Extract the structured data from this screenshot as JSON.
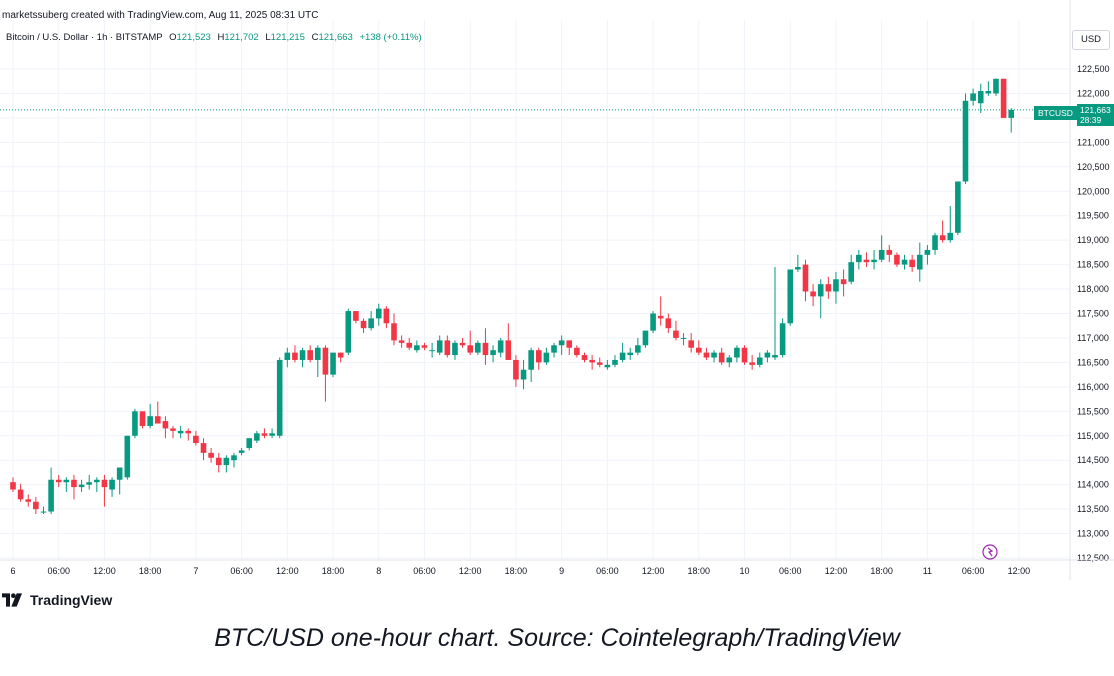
{
  "header": {
    "credit": "marketssuberg created with TradingView.com, Aug 11, 2025 08:31 UTC"
  },
  "legend": {
    "symbol": "Bitcoin / U.S. Dollar · 1h · BITSTAMP",
    "open_label": "O",
    "open": "121,523",
    "high_label": "H",
    "high": "121,702",
    "low_label": "L",
    "low": "121,215",
    "close_label": "C",
    "close": "121,663",
    "change": "+138 (+0.11%)"
  },
  "currency_button": "USD",
  "price_tag": {
    "symbol": "BTCUSD",
    "price": "121,663",
    "countdown": "28:39"
  },
  "logo": {
    "text": "TradingView"
  },
  "caption": "BTC/USD one-hour chart. Source: Cointelegraph/TradingView",
  "colors": {
    "up": "#089981",
    "down": "#f23645",
    "grid": "#f0f3fa",
    "last_price_line": "#089981"
  },
  "chart_data": {
    "type": "candlestick",
    "ylim": [
      112500,
      122800
    ],
    "yticks": [
      "112,500",
      "113,000",
      "113,500",
      "114,000",
      "114,500",
      "115,000",
      "115,500",
      "116,000",
      "116,500",
      "117,000",
      "117,500",
      "118,000",
      "118,500",
      "119,000",
      "119,500",
      "120,000",
      "120,500",
      "121,000",
      "121,500",
      "122,000",
      "122,500"
    ],
    "x_ticks": [
      {
        "label": "6",
        "index": 0
      },
      {
        "label": "06:00",
        "index": 6
      },
      {
        "label": "12:00",
        "index": 12
      },
      {
        "label": "18:00",
        "index": 18
      },
      {
        "label": "7",
        "index": 24
      },
      {
        "label": "06:00",
        "index": 30
      },
      {
        "label": "12:00",
        "index": 36
      },
      {
        "label": "18:00",
        "index": 42
      },
      {
        "label": "8",
        "index": 48
      },
      {
        "label": "06:00",
        "index": 54
      },
      {
        "label": "12:00",
        "index": 60
      },
      {
        "label": "18:00",
        "index": 66
      },
      {
        "label": "9",
        "index": 72
      },
      {
        "label": "06:00",
        "index": 78
      },
      {
        "label": "12:00",
        "index": 84
      },
      {
        "label": "18:00",
        "index": 90
      },
      {
        "label": "10",
        "index": 96
      },
      {
        "label": "06:00",
        "index": 102
      },
      {
        "label": "12:00",
        "index": 108
      },
      {
        "label": "18:00",
        "index": 114
      },
      {
        "label": "11",
        "index": 120
      },
      {
        "label": "06:00",
        "index": 126
      },
      {
        "label": "12:00",
        "index": 132
      }
    ],
    "last_price": 121663,
    "candles": [
      [
        114050,
        114150,
        113850,
        113900
      ],
      [
        113900,
        114020,
        113650,
        113700
      ],
      [
        113700,
        113800,
        113550,
        113650
      ],
      [
        113650,
        113750,
        113400,
        113500
      ],
      [
        113450,
        113550,
        113400,
        113450
      ],
      [
        113450,
        114350,
        113400,
        114100
      ],
      [
        114100,
        114200,
        113950,
        114050
      ],
      [
        114050,
        114150,
        113850,
        114100
      ],
      [
        114100,
        114200,
        113700,
        113950
      ],
      [
        113950,
        114100,
        113850,
        114000
      ],
      [
        114000,
        114200,
        113900,
        114050
      ],
      [
        114050,
        114150,
        113850,
        114100
      ],
      [
        114100,
        114200,
        113550,
        113950
      ],
      [
        113900,
        114150,
        113750,
        114100
      ],
      [
        114100,
        114350,
        113800,
        114350
      ],
      [
        114150,
        115000,
        114100,
        115000
      ],
      [
        115000,
        115550,
        114950,
        115500
      ],
      [
        115500,
        115500,
        115150,
        115200
      ],
      [
        115200,
        115650,
        115150,
        115400
      ],
      [
        115400,
        115700,
        115250,
        115250
      ],
      [
        115300,
        115400,
        114950,
        115150
      ],
      [
        115150,
        115200,
        114950,
        115100
      ],
      [
        115050,
        115200,
        114950,
        115100
      ],
      [
        115100,
        115150,
        114900,
        115050
      ],
      [
        115000,
        115100,
        114800,
        114850
      ],
      [
        114850,
        114950,
        114500,
        114650
      ],
      [
        114650,
        114750,
        114450,
        114550
      ],
      [
        114550,
        114650,
        114250,
        114400
      ],
      [
        114400,
        114600,
        114250,
        114550
      ],
      [
        114500,
        114650,
        114350,
        114600
      ],
      [
        114650,
        114750,
        114600,
        114700
      ],
      [
        114750,
        114950,
        114700,
        114950
      ],
      [
        114900,
        115100,
        114850,
        115050
      ],
      [
        115050,
        115150,
        114950,
        115000
      ],
      [
        115000,
        115150,
        114950,
        115050
      ],
      [
        115000,
        116600,
        114950,
        116550
      ],
      [
        116550,
        116800,
        116400,
        116700
      ],
      [
        116700,
        116850,
        116500,
        116550
      ],
      [
        116550,
        116800,
        116400,
        116750
      ],
      [
        116750,
        116850,
        116500,
        116550
      ],
      [
        116550,
        116850,
        116200,
        116800
      ],
      [
        116800,
        116850,
        115700,
        116250
      ],
      [
        116250,
        116700,
        116200,
        116700
      ],
      [
        116700,
        116700,
        116500,
        116600
      ],
      [
        116700,
        117600,
        116650,
        117550
      ],
      [
        117550,
        117550,
        117300,
        117350
      ],
      [
        117350,
        117400,
        117100,
        117200
      ],
      [
        117200,
        117550,
        117150,
        117400
      ],
      [
        117400,
        117700,
        117250,
        117600
      ],
      [
        117600,
        117650,
        117200,
        117300
      ],
      [
        117300,
        117500,
        116850,
        116950
      ],
      [
        116950,
        117050,
        116800,
        116900
      ],
      [
        116900,
        117000,
        116750,
        116800
      ],
      [
        116750,
        116950,
        116700,
        116850
      ],
      [
        116850,
        116900,
        116750,
        116800
      ],
      [
        116750,
        116900,
        116600,
        116750
      ],
      [
        116700,
        117050,
        116650,
        116950
      ],
      [
        116950,
        117050,
        116600,
        116650
      ],
      [
        116650,
        116950,
        116550,
        116900
      ],
      [
        116900,
        117000,
        116800,
        116850
      ],
      [
        116850,
        117150,
        116650,
        116700
      ],
      [
        116700,
        116950,
        116650,
        116900
      ],
      [
        116900,
        117200,
        116450,
        116650
      ],
      [
        116650,
        116850,
        116500,
        116750
      ],
      [
        116700,
        117000,
        116600,
        116950
      ],
      [
        116950,
        117300,
        116550,
        116550
      ],
      [
        116550,
        116650,
        116000,
        116150
      ],
      [
        116150,
        116550,
        115950,
        116350
      ],
      [
        116350,
        116800,
        116100,
        116750
      ],
      [
        116750,
        116800,
        116350,
        116500
      ],
      [
        116500,
        116800,
        116450,
        116700
      ],
      [
        116700,
        116900,
        116600,
        116850
      ],
      [
        116850,
        117050,
        116650,
        116950
      ],
      [
        116950,
        116950,
        116650,
        116800
      ],
      [
        116800,
        116850,
        116600,
        116650
      ],
      [
        116650,
        116700,
        116500,
        116550
      ],
      [
        116550,
        116650,
        116350,
        116500
      ],
      [
        116500,
        116600,
        116400,
        116450
      ],
      [
        116400,
        116550,
        116350,
        116450
      ],
      [
        116450,
        116650,
        116400,
        116550
      ],
      [
        116550,
        116900,
        116500,
        116700
      ],
      [
        116650,
        116800,
        116550,
        116700
      ],
      [
        116700,
        117000,
        116650,
        116850
      ],
      [
        116850,
        117150,
        116800,
        117150
      ],
      [
        117150,
        117550,
        117100,
        117500
      ],
      [
        117450,
        117850,
        117250,
        117400
      ],
      [
        117400,
        117500,
        117100,
        117200
      ],
      [
        117150,
        117350,
        116950,
        117000
      ],
      [
        117000,
        117100,
        116850,
        117000
      ],
      [
        116950,
        117100,
        116700,
        116800
      ],
      [
        116800,
        116950,
        116650,
        116700
      ],
      [
        116700,
        116800,
        116550,
        116600
      ],
      [
        116600,
        116750,
        116500,
        116700
      ],
      [
        116700,
        116800,
        116450,
        116500
      ],
      [
        116500,
        116650,
        116400,
        116600
      ],
      [
        116600,
        116850,
        116500,
        116800
      ],
      [
        116800,
        116850,
        116450,
        116500
      ],
      [
        116500,
        116650,
        116350,
        116450
      ],
      [
        116450,
        116700,
        116400,
        116600
      ],
      [
        116600,
        116750,
        116500,
        116700
      ],
      [
        116600,
        118450,
        116550,
        116650
      ],
      [
        116650,
        117400,
        116600,
        117300
      ],
      [
        117300,
        118400,
        117250,
        118400
      ],
      [
        118400,
        118700,
        118350,
        118450
      ],
      [
        118500,
        118600,
        117750,
        117950
      ],
      [
        117950,
        118100,
        117650,
        117850
      ],
      [
        117850,
        118200,
        117400,
        118100
      ],
      [
        118100,
        118250,
        117800,
        117950
      ],
      [
        117950,
        118350,
        117700,
        118200
      ],
      [
        118200,
        118400,
        117850,
        118100
      ],
      [
        118150,
        118700,
        118100,
        118550
      ],
      [
        118550,
        118800,
        118400,
        118700
      ],
      [
        118600,
        118750,
        118450,
        118550
      ],
      [
        118550,
        118800,
        118400,
        118600
      ],
      [
        118600,
        119100,
        118550,
        118800
      ],
      [
        118800,
        118900,
        118550,
        118700
      ],
      [
        118700,
        118750,
        118450,
        118500
      ],
      [
        118500,
        118700,
        118400,
        118600
      ],
      [
        118600,
        118700,
        118350,
        118450
      ],
      [
        118400,
        118950,
        118150,
        118700
      ],
      [
        118700,
        118900,
        118500,
        118800
      ],
      [
        118800,
        119150,
        118700,
        119100
      ],
      [
        119100,
        119400,
        118950,
        119000
      ],
      [
        119000,
        119700,
        118950,
        119150
      ],
      [
        119150,
        120200,
        119100,
        120200
      ],
      [
        120200,
        122000,
        120150,
        121850
      ],
      [
        121850,
        122100,
        121750,
        122000
      ],
      [
        121800,
        122200,
        121600,
        122050
      ],
      [
        122000,
        122250,
        121950,
        122050
      ],
      [
        122000,
        122300,
        121950,
        122300
      ],
      [
        122300,
        122300,
        121500,
        121500
      ],
      [
        121500,
        121700,
        121200,
        121663
      ]
    ]
  }
}
